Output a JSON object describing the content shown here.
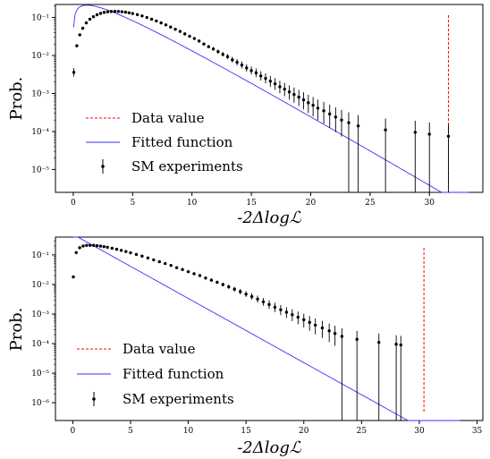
{
  "chart_data": [
    {
      "type": "scatter",
      "xlabel": "-2Δlogℒ",
      "ylabel": "Prob.",
      "xlim": [
        -1.5,
        34.5
      ],
      "ylim": [
        2.5e-06,
        0.22
      ],
      "log_y": true,
      "xticks": [
        0,
        5,
        10,
        15,
        20,
        25,
        30
      ],
      "yticks": [
        0.1,
        0.01,
        0.001,
        0.0001,
        1e-05
      ],
      "ytick_labels": [
        "10⁻¹",
        "10⁻²",
        "10⁻³",
        "10⁻⁴",
        "10⁻⁵"
      ],
      "legend": {
        "placement": "lower-left",
        "entries": [
          "Data value",
          "Fitted function",
          "SM experiments"
        ]
      },
      "data_value": 31.6,
      "fit": {
        "k": 1.5,
        "theta": 2.3,
        "x_max": 33.3
      },
      "points": [
        [
          0.05,
          0.0036
        ],
        [
          0.3,
          0.018
        ],
        [
          0.55,
          0.035
        ],
        [
          0.8,
          0.052
        ],
        [
          1.1,
          0.072
        ],
        [
          1.4,
          0.09
        ],
        [
          1.7,
          0.105
        ],
        [
          2.0,
          0.118
        ],
        [
          2.3,
          0.128
        ],
        [
          2.6,
          0.136
        ],
        [
          2.9,
          0.141
        ],
        [
          3.2,
          0.144
        ],
        [
          3.5,
          0.145
        ],
        [
          3.8,
          0.144
        ],
        [
          4.1,
          0.142
        ],
        [
          4.4,
          0.138
        ],
        [
          4.7,
          0.133
        ],
        [
          5.0,
          0.127
        ],
        [
          5.4,
          0.119
        ],
        [
          5.8,
          0.11
        ],
        [
          6.2,
          0.1
        ],
        [
          6.6,
          0.09
        ],
        [
          7.0,
          0.081
        ],
        [
          7.4,
          0.072
        ],
        [
          7.8,
          0.064
        ],
        [
          8.2,
          0.056
        ],
        [
          8.6,
          0.049
        ],
        [
          9.0,
          0.043
        ],
        [
          9.4,
          0.037
        ],
        [
          9.8,
          0.032
        ],
        [
          10.2,
          0.028
        ],
        [
          10.6,
          0.024
        ],
        [
          11.0,
          0.02
        ],
        [
          11.4,
          0.017
        ],
        [
          11.8,
          0.0148
        ],
        [
          12.2,
          0.0126
        ],
        [
          12.6,
          0.0107
        ],
        [
          13.0,
          0.0093
        ],
        [
          13.4,
          0.0077
        ],
        [
          13.8,
          0.0066
        ],
        [
          14.2,
          0.0056
        ],
        [
          14.6,
          0.0047
        ],
        [
          15.0,
          0.004
        ],
        [
          15.4,
          0.0035
        ],
        [
          15.8,
          0.0029
        ],
        [
          16.2,
          0.0025
        ],
        [
          16.6,
          0.0021
        ],
        [
          17.0,
          0.0018
        ],
        [
          17.4,
          0.0015
        ],
        [
          17.8,
          0.0013
        ],
        [
          18.2,
          0.0011
        ],
        [
          18.6,
          0.00094
        ],
        [
          19.0,
          0.0008
        ],
        [
          19.4,
          0.00068
        ],
        [
          19.8,
          0.00057
        ],
        [
          20.2,
          0.00049
        ],
        [
          20.6,
          0.00041
        ],
        [
          21.1,
          0.00035
        ],
        [
          21.6,
          0.00029
        ],
        [
          22.1,
          0.00024
        ],
        [
          22.6,
          0.0002
        ],
        [
          23.2,
          0.00017
        ],
        [
          24.0,
          0.00014
        ],
        [
          26.3,
          0.00011
        ],
        [
          28.8,
          9.5e-05
        ],
        [
          30.0,
          8.5e-05
        ],
        [
          31.6,
          7.5e-05
        ]
      ]
    },
    {
      "type": "scatter",
      "xlabel": "-2Δlogℒ",
      "ylabel": "Prob.",
      "xlim": [
        -1.5,
        35.5
      ],
      "ylim": [
        2.5e-07,
        0.4
      ],
      "log_y": true,
      "xticks": [
        0,
        5,
        10,
        15,
        20,
        25,
        30,
        35
      ],
      "yticks": [
        0.1,
        0.01,
        0.001,
        0.0001,
        1e-05,
        1e-06
      ],
      "ytick_labels": [
        "10⁻¹",
        "10⁻²",
        "10⁻³",
        "10⁻⁴",
        "10⁻⁵",
        "10⁻⁶"
      ],
      "legend": {
        "placement": "lower-left",
        "entries": [
          "Data value",
          "Fitted function",
          "SM experiments"
        ]
      },
      "data_value": 30.4,
      "fit": {
        "k": 1.0,
        "theta": 2.0,
        "x_max": 33.5
      },
      "points": [
        [
          0.05,
          0.018
        ],
        [
          0.3,
          0.12
        ],
        [
          0.6,
          0.175
        ],
        [
          0.9,
          0.2
        ],
        [
          1.2,
          0.21
        ],
        [
          1.5,
          0.212
        ],
        [
          1.8,
          0.21
        ],
        [
          2.1,
          0.205
        ],
        [
          2.4,
          0.198
        ],
        [
          2.7,
          0.19
        ],
        [
          3.0,
          0.181
        ],
        [
          3.4,
          0.168
        ],
        [
          3.8,
          0.155
        ],
        [
          4.2,
          0.142
        ],
        [
          4.6,
          0.13
        ],
        [
          5.0,
          0.118
        ],
        [
          5.5,
          0.104
        ],
        [
          6.0,
          0.091
        ],
        [
          6.5,
          0.079
        ],
        [
          7.0,
          0.068
        ],
        [
          7.5,
          0.059
        ],
        [
          8.0,
          0.051
        ],
        [
          8.5,
          0.044
        ],
        [
          9.0,
          0.037
        ],
        [
          9.5,
          0.032
        ],
        [
          10.0,
          0.027
        ],
        [
          10.5,
          0.023
        ],
        [
          11.0,
          0.02
        ],
        [
          11.5,
          0.0165
        ],
        [
          12.0,
          0.014
        ],
        [
          12.5,
          0.0118
        ],
        [
          13.0,
          0.0099
        ],
        [
          13.5,
          0.0083
        ],
        [
          14.0,
          0.0069
        ],
        [
          14.5,
          0.0057
        ],
        [
          15.0,
          0.0047
        ],
        [
          15.5,
          0.0039
        ],
        [
          16.0,
          0.0032
        ],
        [
          16.5,
          0.0026
        ],
        [
          17.0,
          0.0021
        ],
        [
          17.5,
          0.0017
        ],
        [
          18.0,
          0.0014
        ],
        [
          18.5,
          0.00115
        ],
        [
          19.0,
          0.00095
        ],
        [
          19.5,
          0.00078
        ],
        [
          20.0,
          0.00064
        ],
        [
          20.5,
          0.00052
        ],
        [
          21.0,
          0.00042
        ],
        [
          21.6,
          0.00034
        ],
        [
          22.2,
          0.00027
        ],
        [
          22.7,
          0.00022
        ],
        [
          23.3,
          0.000175
        ],
        [
          24.6,
          0.00014
        ],
        [
          26.5,
          0.00011
        ],
        [
          28.0,
          9.5e-05
        ],
        [
          28.4,
          9e-05
        ]
      ]
    }
  ]
}
